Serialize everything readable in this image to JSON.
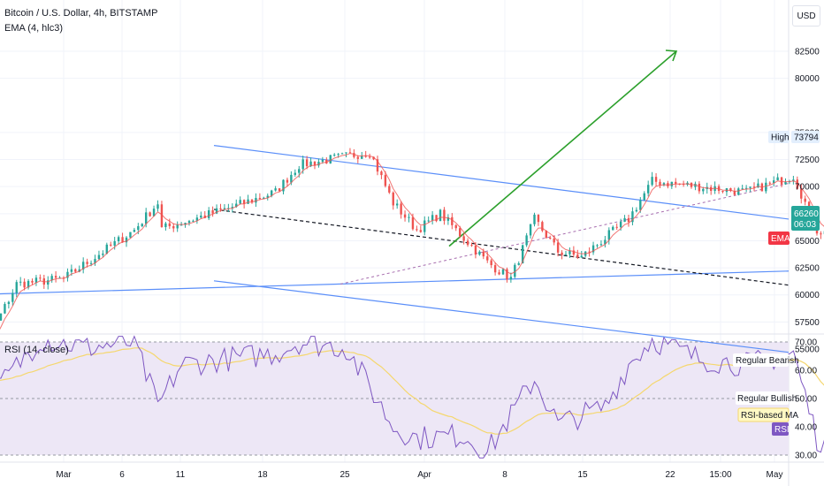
{
  "header": {
    "symbol_title": "Bitcoin / U.S. Dollar, 4h, BITSTAMP",
    "indicator_ema": "EMA (4, hlc3)",
    "indicator_rsi": "RSI (14, close)",
    "currency_button": "USD"
  },
  "colors": {
    "bull": "#26a69a",
    "bear": "#ef5350",
    "trendline": "#5b8ff9",
    "arrow": "#2ca02c",
    "rsi_line": "#7e57c2",
    "rsi_ma": "#f5d76e",
    "rsi_band": "#ede7f6",
    "ema_tag": "#f23645"
  },
  "chart_data": [
    {
      "type": "candlestick",
      "title": "Bitcoin / U.S. Dollar, 4h, BITSTAMP",
      "x_ticks": [
        "Mar",
        "6",
        "11",
        "18",
        "25",
        "Apr",
        "8",
        "15",
        "22",
        "15:00",
        "May"
      ],
      "y_ticks": [
        55000,
        57500,
        60000,
        62500,
        65000,
        67500,
        70000,
        72500,
        75000,
        80000,
        82500
      ],
      "ylim": [
        52000,
        86000
      ],
      "key_points": [
        {
          "date": "Feb 26",
          "close": 52500
        },
        {
          "date": "Feb 28",
          "close": 61000
        },
        {
          "date": "Mar 1",
          "close": 61500
        },
        {
          "date": "Mar 4",
          "close": 66000
        },
        {
          "date": "Mar 5",
          "close": 68500
        },
        {
          "date": "Mar 5",
          "close": 60500
        },
        {
          "date": "Mar 5",
          "close": 66000
        },
        {
          "date": "Mar 8",
          "close": 68000
        },
        {
          "date": "Mar 10",
          "close": 69500
        },
        {
          "date": "Mar 11",
          "close": 72000
        },
        {
          "date": "Mar 14",
          "close": 73200
        },
        {
          "date": "Mar 15",
          "close": 68500
        },
        {
          "date": "Mar 16",
          "close": 66000
        },
        {
          "date": "Mar 17",
          "close": 67500
        },
        {
          "date": "Mar 19",
          "close": 63000
        },
        {
          "date": "Mar 20",
          "close": 61500
        },
        {
          "date": "Mar 21",
          "close": 67000
        },
        {
          "date": "Mar 22",
          "close": 64000
        },
        {
          "date": "Mar 23",
          "close": 63500
        },
        {
          "date": "Mar 25",
          "close": 67000
        },
        {
          "date": "Mar 26",
          "close": 70500
        },
        {
          "date": "Mar 28",
          "close": 70000
        },
        {
          "date": "Mar 30",
          "close": 69500
        },
        {
          "date": "Apr 1",
          "close": 71000
        },
        {
          "date": "Apr 2",
          "close": 66000
        },
        {
          "date": "Apr 3",
          "close": 65200
        },
        {
          "date": "Apr 3",
          "close": 66260
        }
      ],
      "price_tags": {
        "high_label": "High",
        "high_value": "73794",
        "last_price": "66260",
        "countdown": "06:03",
        "ema_label": "EMA"
      },
      "annotations": [
        "upper channel line",
        "lower channel line",
        "horizontal support line",
        "dashed trend line",
        "projection arrow to 82500"
      ]
    },
    {
      "type": "line",
      "title": "RSI (14, close)",
      "y_ticks": [
        "70.00",
        "60.00",
        "50.00",
        "40.00",
        "30.00"
      ],
      "ylim": [
        28,
        72
      ],
      "levels": {
        "upper": 70,
        "middle": 50,
        "lower": 30
      },
      "rsi_points": [
        {
          "date": "Feb 26",
          "value": 58
        },
        {
          "date": "Feb 27",
          "value": 52
        },
        {
          "date": "Feb 29",
          "value": 71
        },
        {
          "date": "Mar 2",
          "value": 68
        },
        {
          "date": "Mar 4",
          "value": 70
        },
        {
          "date": "Mar 5",
          "value": 47
        },
        {
          "date": "Mar 6",
          "value": 62
        },
        {
          "date": "Mar 8",
          "value": 64
        },
        {
          "date": "Mar 10",
          "value": 66
        },
        {
          "date": "Mar 11",
          "value": 70
        },
        {
          "date": "Mar 13",
          "value": 68
        },
        {
          "date": "Mar 15",
          "value": 40
        },
        {
          "date": "Mar 16",
          "value": 36
        },
        {
          "date": "Mar 18",
          "value": 37
        },
        {
          "date": "Mar 19",
          "value": 31
        },
        {
          "date": "Mar 21",
          "value": 57
        },
        {
          "date": "Mar 22",
          "value": 41
        },
        {
          "date": "Mar 24",
          "value": 47
        },
        {
          "date": "Mar 25",
          "value": 62
        },
        {
          "date": "Mar 26",
          "value": 71
        },
        {
          "date": "Mar 28",
          "value": 64
        },
        {
          "date": "Mar 30",
          "value": 62
        },
        {
          "date": "Apr 1",
          "value": 66
        },
        {
          "date": "Apr 2",
          "value": 36
        },
        {
          "date": "Apr 3",
          "value": 31
        },
        {
          "date": "Apr 3",
          "value": 39
        }
      ],
      "labels": {
        "bearish": "Regular Bearish",
        "bullish": "Regular Bullish",
        "rsi_ma": "RSI-based MA",
        "rsi": "RSI"
      }
    }
  ]
}
